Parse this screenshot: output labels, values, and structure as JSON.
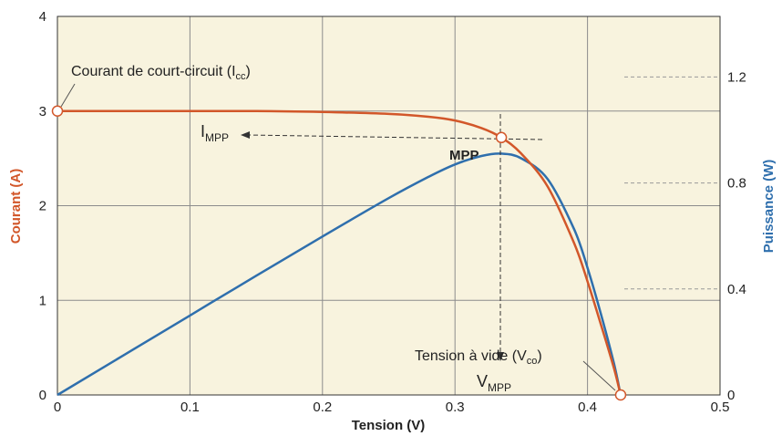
{
  "chart_data": {
    "type": "line",
    "xlabel": "Tension (V)",
    "ylabel_left": "Courant (A)",
    "ylabel_right": "Puissance (W)",
    "xlim": [
      0,
      0.5
    ],
    "ylim_left": [
      0,
      4
    ],
    "ylim_right": [
      0,
      1.4286
    ],
    "x_ticks": [
      "0",
      "0.1",
      "0.2",
      "0.3",
      "0.4",
      "0.5"
    ],
    "y_left_ticks": [
      "0",
      "1",
      "2",
      "3",
      "4"
    ],
    "y_right_ticks": [
      "0",
      "0.4",
      "0.8",
      "1.2"
    ],
    "grid": true,
    "colors": {
      "current": "#d2572a",
      "power": "#2f6fad",
      "background": "#f8f3de",
      "grid": "#8c8c8c",
      "left_label": "#d2572a",
      "right_label": "#2f6fad"
    },
    "series": [
      {
        "axis": "left",
        "x": [
          0,
          0.05,
          0.1,
          0.15,
          0.2,
          0.25,
          0.28,
          0.3,
          0.32,
          0.335,
          0.35,
          0.37,
          0.39,
          0.4,
          0.41,
          0.42,
          0.425
        ],
        "values": [
          3.0,
          3.0,
          3.0,
          3.0,
          2.99,
          2.97,
          2.94,
          2.9,
          2.82,
          2.72,
          2.55,
          2.2,
          1.6,
          1.2,
          0.75,
          0.28,
          0.0
        ]
      },
      {
        "axis": "right",
        "x": [
          0,
          0.05,
          0.1,
          0.15,
          0.2,
          0.25,
          0.28,
          0.3,
          0.32,
          0.335,
          0.35,
          0.37,
          0.39,
          0.4,
          0.41,
          0.42,
          0.425
        ],
        "values": [
          0.0,
          0.15,
          0.3,
          0.45,
          0.598,
          0.743,
          0.823,
          0.87,
          0.902,
          0.911,
          0.893,
          0.814,
          0.624,
          0.48,
          0.308,
          0.118,
          0.0
        ]
      }
    ],
    "markers": [
      {
        "x": 0,
        "y": 3.0
      },
      {
        "x": 0.335,
        "y": 2.72
      },
      {
        "x": 0.425,
        "y": 0.0
      }
    ],
    "annotations": {
      "isc_label": "Courant de court-circuit (I",
      "isc_sub": "cc",
      "isc_close": ")",
      "mpp_label": "MPP",
      "impp_main": "I",
      "impp_sub": "MPP",
      "vmpp_main": "V",
      "vmpp_sub": "MPP",
      "voc_label": "Tension à vide (V",
      "voc_sub": "co",
      "voc_close": ")"
    }
  }
}
